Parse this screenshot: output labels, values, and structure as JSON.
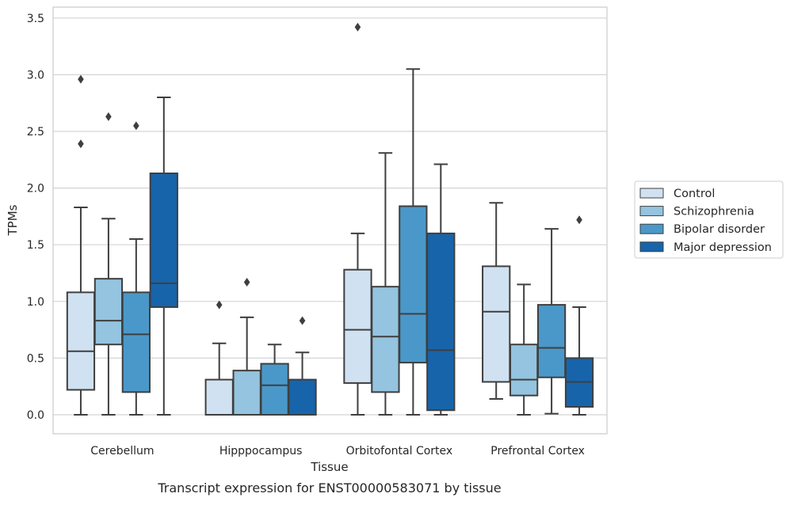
{
  "chart_data": {
    "type": "box",
    "title": "",
    "caption": "Transcript expression for ENST00000583071 by tissue",
    "xlabel": "Tissue",
    "ylabel": "TPMs",
    "ylim": [
      -0.16,
      3.6
    ],
    "yticks": [
      0.0,
      0.5,
      1.0,
      1.5,
      2.0,
      2.5,
      3.0,
      3.5
    ],
    "ytick_labels": [
      "0.0",
      "0.5",
      "1.0",
      "1.5",
      "2.0",
      "2.5",
      "3.0",
      "3.5"
    ],
    "grid": true,
    "legend_position": "right",
    "categories": [
      "Cerebellum",
      "Hipppocampus",
      "Orbitofontal Cortex",
      "Prefrontal Cortex"
    ],
    "series": [
      {
        "name": "Control",
        "color": "#d0e1f2",
        "boxes": [
          {
            "whisker_low": 0.0,
            "q1": 0.22,
            "median": 0.56,
            "q3": 1.08,
            "whisker_high": 1.83,
            "outliers": [
              2.39,
              2.96
            ]
          },
          {
            "whisker_low": 0.0,
            "q1": 0.0,
            "median": 0.0,
            "q3": 0.31,
            "whisker_high": 0.63,
            "outliers": [
              0.97
            ]
          },
          {
            "whisker_low": 0.0,
            "q1": 0.28,
            "median": 0.75,
            "q3": 1.28,
            "whisker_high": 1.6,
            "outliers": [
              3.42
            ]
          },
          {
            "whisker_low": 0.14,
            "q1": 0.29,
            "median": 0.91,
            "q3": 1.31,
            "whisker_high": 1.87,
            "outliers": []
          }
        ]
      },
      {
        "name": "Schizophrenia",
        "color": "#94c4df",
        "boxes": [
          {
            "whisker_low": 0.0,
            "q1": 0.62,
            "median": 0.83,
            "q3": 1.2,
            "whisker_high": 1.73,
            "outliers": [
              2.63
            ]
          },
          {
            "whisker_low": 0.0,
            "q1": 0.0,
            "median": 0.0,
            "q3": 0.39,
            "whisker_high": 0.86,
            "outliers": [
              1.17
            ]
          },
          {
            "whisker_low": 0.0,
            "q1": 0.2,
            "median": 0.69,
            "q3": 1.13,
            "whisker_high": 2.31,
            "outliers": []
          },
          {
            "whisker_low": 0.0,
            "q1": 0.17,
            "median": 0.31,
            "q3": 0.62,
            "whisker_high": 1.15,
            "outliers": []
          }
        ]
      },
      {
        "name": "Bipolar disorder",
        "color": "#4a98c9",
        "boxes": [
          {
            "whisker_low": 0.0,
            "q1": 0.2,
            "median": 0.71,
            "q3": 1.08,
            "whisker_high": 1.55,
            "outliers": [
              2.55
            ]
          },
          {
            "whisker_low": 0.0,
            "q1": 0.0,
            "median": 0.26,
            "q3": 0.45,
            "whisker_high": 0.62,
            "outliers": []
          },
          {
            "whisker_low": 0.0,
            "q1": 0.46,
            "median": 0.89,
            "q3": 1.84,
            "whisker_high": 3.05,
            "outliers": []
          },
          {
            "whisker_low": 0.01,
            "q1": 0.33,
            "median": 0.59,
            "q3": 0.97,
            "whisker_high": 1.64,
            "outliers": []
          }
        ]
      },
      {
        "name": "Major depression",
        "color": "#1764ab",
        "boxes": [
          {
            "whisker_low": 0.0,
            "q1": 0.95,
            "median": 1.16,
            "q3": 2.13,
            "whisker_high": 2.8,
            "outliers": []
          },
          {
            "whisker_low": 0.0,
            "q1": 0.0,
            "median": 0.0,
            "q3": 0.31,
            "whisker_high": 0.55,
            "outliers": [
              0.83
            ]
          },
          {
            "whisker_low": 0.0,
            "q1": 0.04,
            "median": 0.57,
            "q3": 1.6,
            "whisker_high": 2.21,
            "outliers": []
          },
          {
            "whisker_low": 0.0,
            "q1": 0.07,
            "median": 0.29,
            "q3": 0.5,
            "whisker_high": 0.95,
            "outliers": [
              1.72
            ]
          }
        ]
      }
    ]
  }
}
